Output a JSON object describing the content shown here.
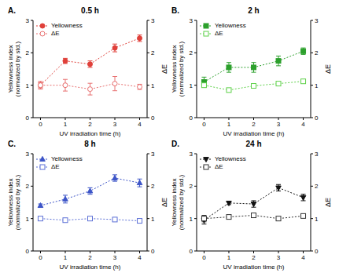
{
  "chart_data": [
    {
      "type": "line",
      "panel_label": "A.",
      "title": "0.5 h",
      "xlabel": "UV irradiation time (h)",
      "ylabel": "Yellowness index (normalized by std.)",
      "y2label": "ΔE",
      "x": [
        0,
        1,
        2,
        3,
        4
      ],
      "xlim": [
        -0.3,
        4.3
      ],
      "xticks": [
        0,
        1,
        2,
        3,
        4
      ],
      "ylim": [
        0,
        3
      ],
      "yticks": [
        0,
        1,
        2,
        3
      ],
      "y2lim": [
        0,
        3
      ],
      "y2ticks": [
        0,
        1,
        2,
        3
      ],
      "grid": false,
      "legend": "upper left",
      "series": [
        {
          "name": "Yellowness",
          "color": "#e0403a",
          "marker": "circle",
          "line_style": "dotted",
          "values": [
            1.0,
            1.75,
            1.65,
            2.15,
            2.45
          ],
          "errors": [
            0.08,
            0.08,
            0.1,
            0.12,
            0.1
          ]
        },
        {
          "name": "ΔE",
          "color": "#e87070",
          "marker": "open-circle",
          "line_style": "dotted",
          "axis": "y2",
          "values": [
            1.0,
            1.0,
            0.88,
            1.05,
            0.95
          ],
          "errors": [
            0.12,
            0.18,
            0.18,
            0.22,
            0.08
          ]
        }
      ]
    },
    {
      "type": "line",
      "panel_label": "B.",
      "title": "2 h",
      "xlabel": "UV irradiation time (h)",
      "ylabel": "Yellowness index (normalized by std.)",
      "y2label": "ΔE",
      "x": [
        0,
        1,
        2,
        3,
        4
      ],
      "xlim": [
        -0.3,
        4.3
      ],
      "xticks": [
        0,
        1,
        2,
        3,
        4
      ],
      "ylim": [
        0,
        3
      ],
      "yticks": [
        0,
        1,
        2,
        3
      ],
      "y2lim": [
        0,
        3
      ],
      "y2ticks": [
        0,
        1,
        2,
        3
      ],
      "grid": false,
      "legend": "upper left",
      "series": [
        {
          "name": "Yellowness",
          "color": "#2ca02c",
          "marker": "square",
          "line_style": "dotted",
          "values": [
            1.1,
            1.55,
            1.55,
            1.75,
            2.05
          ],
          "errors": [
            0.15,
            0.15,
            0.15,
            0.15,
            0.1
          ]
        },
        {
          "name": "ΔE",
          "color": "#5fd14a",
          "marker": "open-square",
          "line_style": "dotted",
          "axis": "y2",
          "values": [
            1.0,
            0.85,
            0.98,
            1.05,
            1.12
          ],
          "errors": [
            0.05,
            0.05,
            0.05,
            0.05,
            0.05
          ]
        }
      ]
    },
    {
      "type": "line",
      "panel_label": "C.",
      "title": "8 h",
      "xlabel": "UV irradiation time (h)",
      "ylabel": "Yellowness index (normalized by std.)",
      "y2label": "ΔE",
      "x": [
        0,
        1,
        2,
        3,
        4
      ],
      "xlim": [
        -0.3,
        4.3
      ],
      "xticks": [
        0,
        1,
        2,
        3,
        4
      ],
      "ylim": [
        0,
        3
      ],
      "yticks": [
        0,
        1,
        2,
        3
      ],
      "y2lim": [
        0,
        3
      ],
      "y2ticks": [
        0,
        1,
        2,
        3
      ],
      "grid": false,
      "legend": "upper left",
      "series": [
        {
          "name": "Yellowness",
          "color": "#3d55c8",
          "marker": "triangle",
          "line_style": "dotted",
          "values": [
            1.4,
            1.6,
            1.85,
            2.25,
            2.1
          ],
          "errors": [
            0.05,
            0.12,
            0.1,
            0.1,
            0.12
          ]
        },
        {
          "name": "ΔE",
          "color": "#5b6fd6",
          "marker": "open-square",
          "line_style": "dotted",
          "axis": "y2",
          "values": [
            1.0,
            0.95,
            1.0,
            0.97,
            0.93
          ],
          "errors": [
            0.03,
            0.03,
            0.03,
            0.03,
            0.05
          ]
        }
      ]
    },
    {
      "type": "line",
      "panel_label": "D.",
      "title": "24 h",
      "xlabel": "UV irradiation time (h)",
      "ylabel": "Yellowness index (normalized by std.)",
      "y2label": "ΔE",
      "x": [
        0,
        1,
        2,
        3,
        4
      ],
      "xlim": [
        -0.3,
        4.3
      ],
      "xticks": [
        0,
        1,
        2,
        3,
        4
      ],
      "ylim": [
        0,
        3
      ],
      "yticks": [
        0,
        1,
        2,
        3
      ],
      "y2lim": [
        0,
        3
      ],
      "y2ticks": [
        0,
        1,
        2,
        3
      ],
      "grid": false,
      "legend": "upper left",
      "series": [
        {
          "name": "Yellowness",
          "color": "#111111",
          "marker": "triangle-down",
          "line_style": "dotted",
          "values": [
            0.95,
            1.48,
            1.45,
            1.95,
            1.65
          ],
          "errors": [
            0.12,
            0.05,
            0.1,
            0.1,
            0.1
          ]
        },
        {
          "name": "ΔE",
          "color": "#333333",
          "marker": "open-square",
          "line_style": "dotted",
          "axis": "y2",
          "values": [
            1.0,
            1.05,
            1.1,
            1.0,
            1.08
          ],
          "errors": [
            0.1,
            0.03,
            0.05,
            0.05,
            0.03
          ]
        }
      ]
    }
  ]
}
